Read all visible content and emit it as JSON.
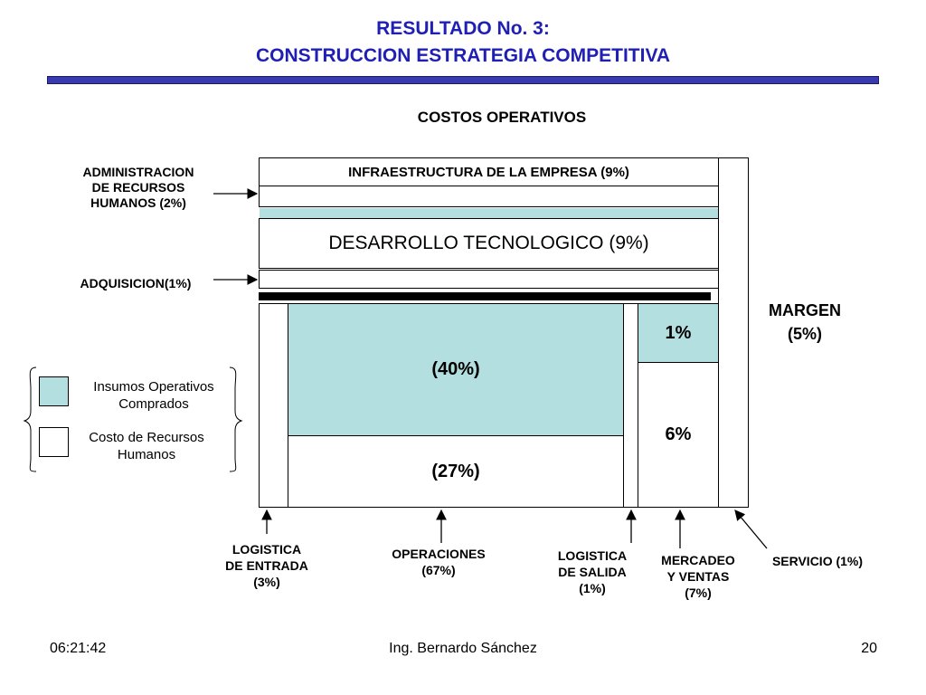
{
  "slide": {
    "title_line1": "RESULTADO No. 3:",
    "title_line2": "CONSTRUCCION ESTRATEGIA COMPETITIVA"
  },
  "diagram": {
    "heading": "COSTOS OPERATIVOS",
    "infraestructura": "INFRAESTRUCTURA DE LA EMPRESA (9%)",
    "desarrollo": "DESARROLLO TECNOLOGICO (9%)",
    "operaciones_insumos": "(40%)",
    "operaciones_rrhh": "(27%)",
    "mercadeo_insumos": "1%",
    "mercadeo_rrhh": "6%",
    "margen_line1": "MARGEN",
    "margen_line2": "(5%)"
  },
  "left_labels": {
    "rrhh_line1": "ADMINISTRACION",
    "rrhh_line2": "DE RECURSOS",
    "rrhh_line3": "HUMANOS (2%)",
    "adquisicion": "ADQUISICION(1%)"
  },
  "legend": {
    "insumos_line1": "Insumos Operativos",
    "insumos_line2": "Comprados",
    "rrhh_line1": "Costo de Recursos",
    "rrhh_line2": "Humanos"
  },
  "bottom_labels": {
    "log_entrada_line1": "LOGISTICA",
    "log_entrada_line2": "DE ENTRADA",
    "log_entrada_line3": "(3%)",
    "operaciones_line1": "OPERACIONES",
    "operaciones_line2": "(67%)",
    "log_salida_line1": "LOGISTICA",
    "log_salida_line2": "DE SALIDA",
    "log_salida_line3": "(1%)",
    "mercadeo_line1": "MERCADEO",
    "mercadeo_line2": "Y VENTAS",
    "mercadeo_line3": "(7%)",
    "servicio": "SERVICIO (1%)"
  },
  "footer": {
    "time": "06:21:42",
    "author": "Ing. Bernardo Sánchez",
    "page": "20"
  },
  "colors": {
    "title": "#1f1fb4",
    "title_bar": "#3a3ab0",
    "insumos_fill": "#b3dfe0"
  }
}
